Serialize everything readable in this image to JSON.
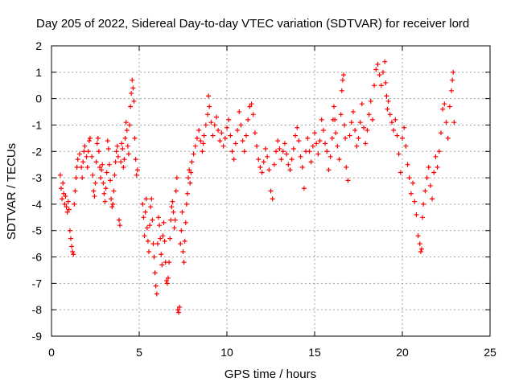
{
  "chart_data": {
    "type": "scatter",
    "title": "Day 205 of 2022, Sidereal Day-to-day VTEC variation (SDTVAR) for receiver lord",
    "xlabel": "GPS time / hours",
    "ylabel": "SDTVAR / TECUs",
    "xlim": [
      0,
      25
    ],
    "ylim": [
      -9,
      2
    ],
    "xticks": [
      0,
      5,
      10,
      15,
      20,
      25
    ],
    "yticks": [
      -9,
      -8,
      -7,
      -6,
      -5,
      -4,
      -3,
      -2,
      -1,
      0,
      1,
      2
    ],
    "xtick_labels": [
      "0",
      "5",
      "10",
      "15",
      "20",
      "25"
    ],
    "ytick_labels": [
      "-9",
      "-8",
      "-7",
      "-6",
      "-5",
      "-4",
      "-3",
      "-2",
      "-1",
      "0",
      "1",
      "2"
    ],
    "grid": true,
    "marker": "+",
    "color": "#ff0000",
    "series": [
      {
        "name": "SDTVAR",
        "points": [
          [
            0.5,
            -2.9
          ],
          [
            0.55,
            -3.4
          ],
          [
            0.6,
            -3.8
          ],
          [
            0.65,
            -3.2
          ],
          [
            0.7,
            -3.6
          ],
          [
            0.75,
            -4.0
          ],
          [
            0.8,
            -3.7
          ],
          [
            0.85,
            -4.1
          ],
          [
            0.9,
            -4.3
          ],
          [
            0.95,
            -3.9
          ],
          [
            1.0,
            -4.2
          ],
          [
            1.05,
            -5.0
          ],
          [
            1.1,
            -5.3
          ],
          [
            1.15,
            -5.6
          ],
          [
            1.2,
            -5.8
          ],
          [
            1.25,
            -5.9
          ],
          [
            1.3,
            -4.0
          ],
          [
            1.35,
            -3.5
          ],
          [
            1.4,
            -3.0
          ],
          [
            1.45,
            -2.6
          ],
          [
            1.5,
            -2.3
          ],
          [
            1.6,
            -2.1
          ],
          [
            1.7,
            -2.6
          ],
          [
            1.75,
            -3.0
          ],
          [
            1.8,
            -2.4
          ],
          [
            1.85,
            -2.0
          ],
          [
            1.9,
            -1.8
          ],
          [
            2.0,
            -2.2
          ],
          [
            2.05,
            -2.6
          ],
          [
            2.1,
            -2.0
          ],
          [
            2.15,
            -1.6
          ],
          [
            2.2,
            -1.5
          ],
          [
            2.3,
            -2.2
          ],
          [
            2.35,
            -2.9
          ],
          [
            2.4,
            -3.5
          ],
          [
            2.45,
            -3.7
          ],
          [
            2.5,
            -3.2
          ],
          [
            2.55,
            -2.4
          ],
          [
            2.6,
            -1.7
          ],
          [
            2.65,
            -1.5
          ],
          [
            2.7,
            -2.0
          ],
          [
            2.75,
            -2.6
          ],
          [
            2.8,
            -3.0
          ],
          [
            2.85,
            -2.7
          ],
          [
            2.9,
            -2.5
          ],
          [
            2.95,
            -3.2
          ],
          [
            3.0,
            -3.6
          ],
          [
            3.05,
            -3.9
          ],
          [
            3.1,
            -3.4
          ],
          [
            3.15,
            -2.8
          ],
          [
            3.2,
            -1.6
          ],
          [
            3.25,
            -1.9
          ],
          [
            3.3,
            -2.5
          ],
          [
            3.35,
            -3.1
          ],
          [
            3.4,
            -3.8
          ],
          [
            3.45,
            -4.1
          ],
          [
            3.5,
            -4.0
          ],
          [
            3.55,
            -3.5
          ],
          [
            3.6,
            -2.9
          ],
          [
            3.65,
            -2.4
          ],
          [
            3.7,
            -2.0
          ],
          [
            3.75,
            -1.8
          ],
          [
            3.8,
            -2.2
          ],
          [
            3.85,
            -4.6
          ],
          [
            3.9,
            -4.8
          ],
          [
            3.95,
            -2.4
          ],
          [
            4.0,
            -1.7
          ],
          [
            4.05,
            -1.9
          ],
          [
            4.1,
            -2.6
          ],
          [
            4.15,
            -2.3
          ],
          [
            4.2,
            -1.5
          ],
          [
            4.25,
            -0.9
          ],
          [
            4.3,
            -1.2
          ],
          [
            4.35,
            -1.8
          ],
          [
            4.4,
            -2.1
          ],
          [
            4.45,
            -1.0
          ],
          [
            4.5,
            -0.3
          ],
          [
            4.55,
            0.2
          ],
          [
            4.6,
            0.7
          ],
          [
            4.65,
            0.4
          ],
          [
            4.7,
            -0.1
          ],
          [
            4.75,
            -1.5
          ],
          [
            4.8,
            -2.3
          ],
          [
            4.85,
            -2.9
          ],
          [
            4.9,
            -2.7
          ],
          [
            5.2,
            -4.0
          ],
          [
            5.25,
            -4.5
          ],
          [
            5.3,
            -5.2
          ],
          [
            5.35,
            -4.3
          ],
          [
            5.4,
            -3.8
          ],
          [
            5.45,
            -4.9
          ],
          [
            5.5,
            -5.4
          ],
          [
            5.55,
            -5.8
          ],
          [
            5.6,
            -4.8
          ],
          [
            5.65,
            -4.1
          ],
          [
            5.7,
            -3.8
          ],
          [
            5.75,
            -4.6
          ],
          [
            5.8,
            -5.5
          ],
          [
            5.85,
            -6.0
          ],
          [
            5.9,
            -6.6
          ],
          [
            5.95,
            -7.1
          ],
          [
            6.0,
            -7.4
          ],
          [
            6.05,
            -5.5
          ],
          [
            6.1,
            -4.5
          ],
          [
            6.15,
            -4.8
          ],
          [
            6.2,
            -5.3
          ],
          [
            6.25,
            -5.9
          ],
          [
            6.3,
            -6.3
          ],
          [
            6.35,
            -5.2
          ],
          [
            6.4,
            -4.7
          ],
          [
            6.45,
            -5.4
          ],
          [
            6.5,
            -6.2
          ],
          [
            6.55,
            -6.9
          ],
          [
            6.6,
            -7.0
          ],
          [
            6.65,
            -6.8
          ],
          [
            6.7,
            -6.2
          ],
          [
            6.75,
            -5.3
          ],
          [
            6.8,
            -4.6
          ],
          [
            6.85,
            -4.1
          ],
          [
            6.9,
            -3.9
          ],
          [
            6.95,
            -4.3
          ],
          [
            7.0,
            -4.9
          ],
          [
            7.05,
            -4.6
          ],
          [
            7.1,
            -3.5
          ],
          [
            7.15,
            -3.0
          ],
          [
            7.2,
            -8.0
          ],
          [
            7.25,
            -8.1
          ],
          [
            7.3,
            -7.9
          ],
          [
            7.35,
            -5.5
          ],
          [
            7.4,
            -5.0
          ],
          [
            7.45,
            -4.3
          ],
          [
            7.5,
            -5.8
          ],
          [
            7.55,
            -6.2
          ],
          [
            7.6,
            -5.4
          ],
          [
            7.65,
            -4.7
          ],
          [
            7.7,
            -4.0
          ],
          [
            7.75,
            -3.6
          ],
          [
            7.8,
            -3.0
          ],
          [
            7.85,
            -2.7
          ],
          [
            7.9,
            -3.2
          ],
          [
            7.95,
            -2.8
          ],
          [
            8.0,
            -2.4
          ],
          [
            8.1,
            -2.1
          ],
          [
            8.2,
            -1.8
          ],
          [
            8.3,
            -1.5
          ],
          [
            8.4,
            -1.2
          ],
          [
            8.5,
            -1.6
          ],
          [
            8.6,
            -2.0
          ],
          [
            8.65,
            -1.7
          ],
          [
            8.7,
            -1.4
          ],
          [
            8.8,
            -1.0
          ],
          [
            8.9,
            -0.6
          ],
          [
            8.95,
            0.1
          ],
          [
            9.0,
            -0.3
          ],
          [
            9.1,
            -0.9
          ],
          [
            9.2,
            -1.4
          ],
          [
            9.3,
            -1.0
          ],
          [
            9.4,
            -0.7
          ],
          [
            9.5,
            -1.2
          ],
          [
            9.6,
            -1.6
          ],
          [
            9.7,
            -1.3
          ],
          [
            9.8,
            -1.8
          ],
          [
            9.9,
            -1.5
          ],
          [
            10.0,
            -1.1
          ],
          [
            10.1,
            -0.8
          ],
          [
            10.2,
            -1.4
          ],
          [
            10.3,
            -2.0
          ],
          [
            10.4,
            -2.3
          ],
          [
            10.5,
            -1.7
          ],
          [
            10.6,
            -1.2
          ],
          [
            10.7,
            -0.5
          ],
          [
            10.8,
            -1.0
          ],
          [
            10.9,
            -1.6
          ],
          [
            11.0,
            -2.0
          ],
          [
            11.1,
            -1.4
          ],
          [
            11.2,
            -0.8
          ],
          [
            11.3,
            -0.3
          ],
          [
            11.4,
            -0.2
          ],
          [
            11.5,
            -0.6
          ],
          [
            11.6,
            -1.3
          ],
          [
            11.7,
            -1.8
          ],
          [
            11.8,
            -2.3
          ],
          [
            11.9,
            -2.6
          ],
          [
            12.0,
            -2.8
          ],
          [
            12.1,
            -2.4
          ],
          [
            12.2,
            -1.9
          ],
          [
            12.3,
            -2.2
          ],
          [
            12.4,
            -2.7
          ],
          [
            12.5,
            -3.5
          ],
          [
            12.6,
            -3.8
          ],
          [
            12.7,
            -2.5
          ],
          [
            12.8,
            -2.0
          ],
          [
            12.9,
            -1.6
          ],
          [
            13.0,
            -1.9
          ],
          [
            13.1,
            -2.3
          ],
          [
            13.2,
            -2.0
          ],
          [
            13.3,
            -1.7
          ],
          [
            13.4,
            -2.1
          ],
          [
            13.5,
            -2.5
          ],
          [
            13.6,
            -2.7
          ],
          [
            13.7,
            -2.3
          ],
          [
            13.8,
            -1.9
          ],
          [
            13.9,
            -1.4
          ],
          [
            14.0,
            -1.1
          ],
          [
            14.1,
            -1.6
          ],
          [
            14.2,
            -2.2
          ],
          [
            14.3,
            -2.6
          ],
          [
            14.4,
            -3.4
          ],
          [
            14.5,
            -2.0
          ],
          [
            14.6,
            -1.5
          ],
          [
            14.7,
            -2.0
          ],
          [
            14.8,
            -2.4
          ],
          [
            14.9,
            -1.8
          ],
          [
            15.0,
            -1.3
          ],
          [
            15.1,
            -1.7
          ],
          [
            15.2,
            -2.1
          ],
          [
            15.3,
            -1.6
          ],
          [
            15.4,
            -0.8
          ],
          [
            15.5,
            -1.2
          ],
          [
            15.6,
            -1.7
          ],
          [
            15.7,
            -2.0
          ],
          [
            15.8,
            -2.7
          ],
          [
            15.9,
            -2.2
          ],
          [
            16.0,
            -1.5
          ],
          [
            16.05,
            -0.8
          ],
          [
            16.1,
            -0.3
          ],
          [
            16.15,
            -0.8
          ],
          [
            16.2,
            -1.3
          ],
          [
            16.3,
            -1.8
          ],
          [
            16.4,
            -2.3
          ],
          [
            16.5,
            -0.6
          ],
          [
            16.55,
            0.3
          ],
          [
            16.6,
            0.7
          ],
          [
            16.65,
            0.9
          ],
          [
            16.7,
            -1.0
          ],
          [
            16.75,
            -1.5
          ],
          [
            16.8,
            -2.6
          ],
          [
            16.9,
            -3.1
          ],
          [
            17.0,
            -1.4
          ],
          [
            17.1,
            -0.9
          ],
          [
            17.2,
            -0.5
          ],
          [
            17.3,
            -1.2
          ],
          [
            17.4,
            -1.8
          ],
          [
            17.5,
            -1.5
          ],
          [
            17.6,
            -0.9
          ],
          [
            17.7,
            -0.2
          ],
          [
            17.8,
            -1.1
          ],
          [
            17.9,
            -1.7
          ],
          [
            18.0,
            -1.2
          ],
          [
            18.1,
            -0.6
          ],
          [
            18.2,
            -0.1
          ],
          [
            18.3,
            -0.8
          ],
          [
            18.4,
            0.5
          ],
          [
            18.5,
            1.1
          ],
          [
            18.6,
            1.3
          ],
          [
            18.7,
            0.9
          ],
          [
            18.8,
            0.5
          ],
          [
            18.9,
            1.0
          ],
          [
            19.0,
            1.4
          ],
          [
            19.05,
            0.6
          ],
          [
            19.1,
            0.1
          ],
          [
            19.15,
            -0.4
          ],
          [
            19.2,
            -0.1
          ],
          [
            19.3,
            -0.6
          ],
          [
            19.4,
            -0.9
          ],
          [
            19.5,
            -1.2
          ],
          [
            19.6,
            -0.8
          ],
          [
            19.7,
            -1.4
          ],
          [
            19.8,
            -2.1
          ],
          [
            19.9,
            -2.8
          ],
          [
            20.0,
            -1.5
          ],
          [
            20.1,
            -1.1
          ],
          [
            20.2,
            -1.8
          ],
          [
            20.3,
            -2.5
          ],
          [
            20.4,
            -3.0
          ],
          [
            20.5,
            -3.6
          ],
          [
            20.6,
            -3.2
          ],
          [
            20.7,
            -3.9
          ],
          [
            20.8,
            -4.4
          ],
          [
            20.9,
            -5.2
          ],
          [
            21.0,
            -5.5
          ],
          [
            21.05,
            -5.8
          ],
          [
            21.1,
            -5.7
          ],
          [
            21.15,
            -4.5
          ],
          [
            21.2,
            -4.0
          ],
          [
            21.3,
            -3.5
          ],
          [
            21.4,
            -3.0
          ],
          [
            21.5,
            -2.6
          ],
          [
            21.6,
            -3.3
          ],
          [
            21.7,
            -3.8
          ],
          [
            21.8,
            -2.8
          ],
          [
            21.9,
            -2.2
          ],
          [
            22.0,
            -2.6
          ],
          [
            22.1,
            -2.0
          ],
          [
            22.2,
            -1.3
          ],
          [
            22.3,
            -0.4
          ],
          [
            22.4,
            -0.2
          ],
          [
            22.5,
            -0.9
          ],
          [
            22.6,
            -1.5
          ],
          [
            22.7,
            -0.3
          ],
          [
            22.8,
            0.3
          ],
          [
            22.85,
            0.7
          ],
          [
            22.9,
            1.0
          ],
          [
            22.95,
            -0.9
          ]
        ]
      }
    ]
  }
}
